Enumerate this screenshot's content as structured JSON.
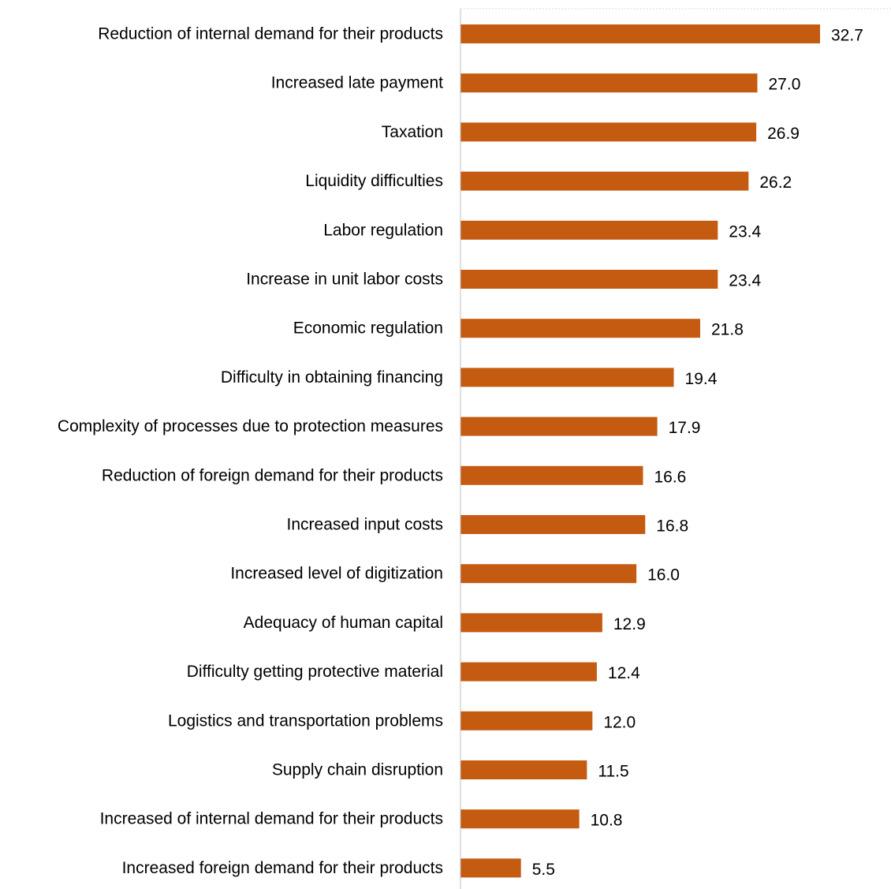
{
  "chart_data": {
    "type": "bar",
    "orientation": "horizontal",
    "categories": [
      "Reduction of internal demand for their products",
      "Increased late payment",
      "Taxation",
      "Liquidity difficulties",
      "Labor regulation",
      "Increase in unit labor costs",
      "Economic regulation",
      "Difficulty in obtaining financing",
      "Complexity of processes due to protection measures",
      "Reduction of foreign demand for their products",
      "Increased input costs",
      "Increased level of digitization",
      "Adequacy of human capital",
      "Difficulty getting protective material",
      "Logistics and transportation problems",
      "Supply chain disruption",
      "Increased of internal demand for their products",
      "Increased foreign demand for their products"
    ],
    "values": [
      32.7,
      27.0,
      26.9,
      26.2,
      23.4,
      23.4,
      21.8,
      19.4,
      17.9,
      16.6,
      16.8,
      16.0,
      12.9,
      12.4,
      12.0,
      11.5,
      10.8,
      5.5
    ],
    "value_labels": [
      "32.7",
      "27.0",
      "26.9",
      "26.2",
      "23.4",
      "23.4",
      "21.8",
      "19.4",
      "17.9",
      "16.6",
      "16.8",
      "16.0",
      "12.9",
      "12.4",
      "12.0",
      "11.5",
      "10.8",
      "5.5"
    ],
    "xlim": [
      0,
      35
    ],
    "title": "",
    "xlabel": "",
    "ylabel": "",
    "grid": false,
    "legend": "none",
    "bar_color": "#C55A11",
    "axis_color": "#BFBFBF"
  }
}
